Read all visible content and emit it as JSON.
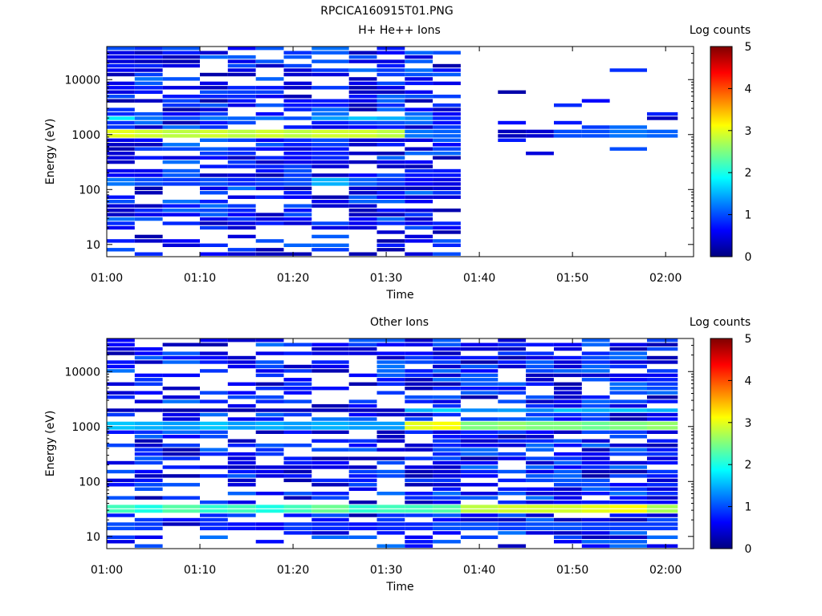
{
  "figure_title": "RPCICA160915T01.PNG",
  "colorbar_colors": [
    "#00007f",
    "#0000ff",
    "#007fff",
    "#00ffff",
    "#7fff7f",
    "#ffff00",
    "#ff7f00",
    "#ff0000",
    "#7f0000"
  ],
  "chart_data": [
    {
      "type": "heatmap",
      "title": "H+ He++ Ions",
      "xlabel": "Time",
      "ylabel": "Energy (eV)",
      "x_ticks": [
        "01:00",
        "01:10",
        "01:20",
        "01:30",
        "01:40",
        "01:50",
        "02:00"
      ],
      "y_ticks": [
        "10",
        "100",
        "1000",
        "10000"
      ],
      "y_scale": "log",
      "ylim": [
        6,
        40000
      ],
      "xlim": [
        "01:00",
        "02:03"
      ],
      "colorbar_label": "Log counts",
      "colorbar_ticks": [
        "0",
        "1",
        "2",
        "3",
        "4",
        "5"
      ],
      "colorbar_range": [
        0,
        5
      ],
      "time_bins": [
        "01:00",
        "01:03",
        "01:06",
        "01:10",
        "01:13",
        "01:16",
        "01:19",
        "01:22",
        "01:26",
        "01:29",
        "01:32",
        "01:35",
        "01:38",
        "01:42",
        "01:45",
        "01:48",
        "01:51",
        "01:54",
        "01:58"
      ],
      "bands": [
        {
          "energy_ev": 1000,
          "log_counts": [
            3.0,
            2.9,
            2.8,
            2.9,
            2.8,
            2.9,
            2.8,
            2.9,
            2.9,
            2.8,
            1.2,
            1.1,
            0,
            0.3,
            0.4,
            1.0,
            1.0,
            1.2,
            1.1
          ]
        },
        {
          "energy_ev": 2000,
          "log_counts": [
            1.8,
            1.2,
            1.0,
            1.2,
            1.1,
            1.2,
            1.0,
            1.4,
            1.6,
            1.5,
            1.3,
            0.8,
            0,
            0,
            0,
            0,
            0,
            0,
            0.3
          ]
        },
        {
          "energy_ev": 140,
          "log_counts": [
            1.2,
            1.0,
            0.9,
            1.0,
            0.8,
            0.9,
            1.0,
            1.5,
            1.1,
            0.9,
            0.6,
            0.5,
            0,
            0,
            0,
            0,
            0,
            0,
            0
          ]
        }
      ]
    },
    {
      "type": "heatmap",
      "title": "Other Ions",
      "xlabel": "Time",
      "ylabel": "Energy (eV)",
      "x_ticks": [
        "01:00",
        "01:10",
        "01:20",
        "01:30",
        "01:40",
        "01:50",
        "02:00"
      ],
      "y_ticks": [
        "10",
        "100",
        "1000",
        "10000"
      ],
      "y_scale": "log",
      "ylim": [
        6,
        40000
      ],
      "xlim": [
        "01:00",
        "02:03"
      ],
      "colorbar_label": "Log counts",
      "colorbar_ticks": [
        "0",
        "1",
        "2",
        "3",
        "4",
        "5"
      ],
      "colorbar_range": [
        0,
        5
      ],
      "time_bins": [
        "01:00",
        "01:03",
        "01:06",
        "01:10",
        "01:13",
        "01:16",
        "01:19",
        "01:22",
        "01:26",
        "01:29",
        "01:32",
        "01:35",
        "01:38",
        "01:42",
        "01:45",
        "01:48",
        "01:51",
        "01:54",
        "01:58"
      ],
      "bands": [
        {
          "energy_ev": 1000,
          "log_counts": [
            1.6,
            1.5,
            1.4,
            1.6,
            1.4,
            1.5,
            1.4,
            1.5,
            1.4,
            1.4,
            3.0,
            3.1,
            2.5,
            2.6,
            2.5,
            2.5,
            2.4,
            2.5,
            2.6
          ]
        },
        {
          "energy_ev": 2000,
          "log_counts": [
            0.3,
            0.3,
            0.2,
            0.3,
            0.2,
            0.3,
            0.3,
            0.3,
            0.3,
            0.3,
            1.5,
            1.7,
            1.3,
            1.4,
            1.3,
            1.6,
            1.5,
            1.6,
            1.5
          ]
        },
        {
          "energy_ev": 30,
          "log_counts": [
            2.2,
            2.0,
            2.3,
            2.1,
            2.2,
            2.0,
            2.2,
            2.4,
            2.1,
            2.2,
            2.2,
            2.3,
            2.8,
            2.9,
            2.9,
            2.9,
            3.0,
            3.1,
            2.7
          ]
        },
        {
          "energy_ev": 15,
          "log_counts": [
            1.0,
            0.9,
            0,
            0.8,
            0.7,
            0.6,
            0.9,
            0.8,
            0.7,
            0.8,
            0.8,
            1.0,
            1.0,
            0.9,
            1.0,
            1.0,
            0.9,
            0.9,
            0.9
          ]
        }
      ]
    }
  ]
}
